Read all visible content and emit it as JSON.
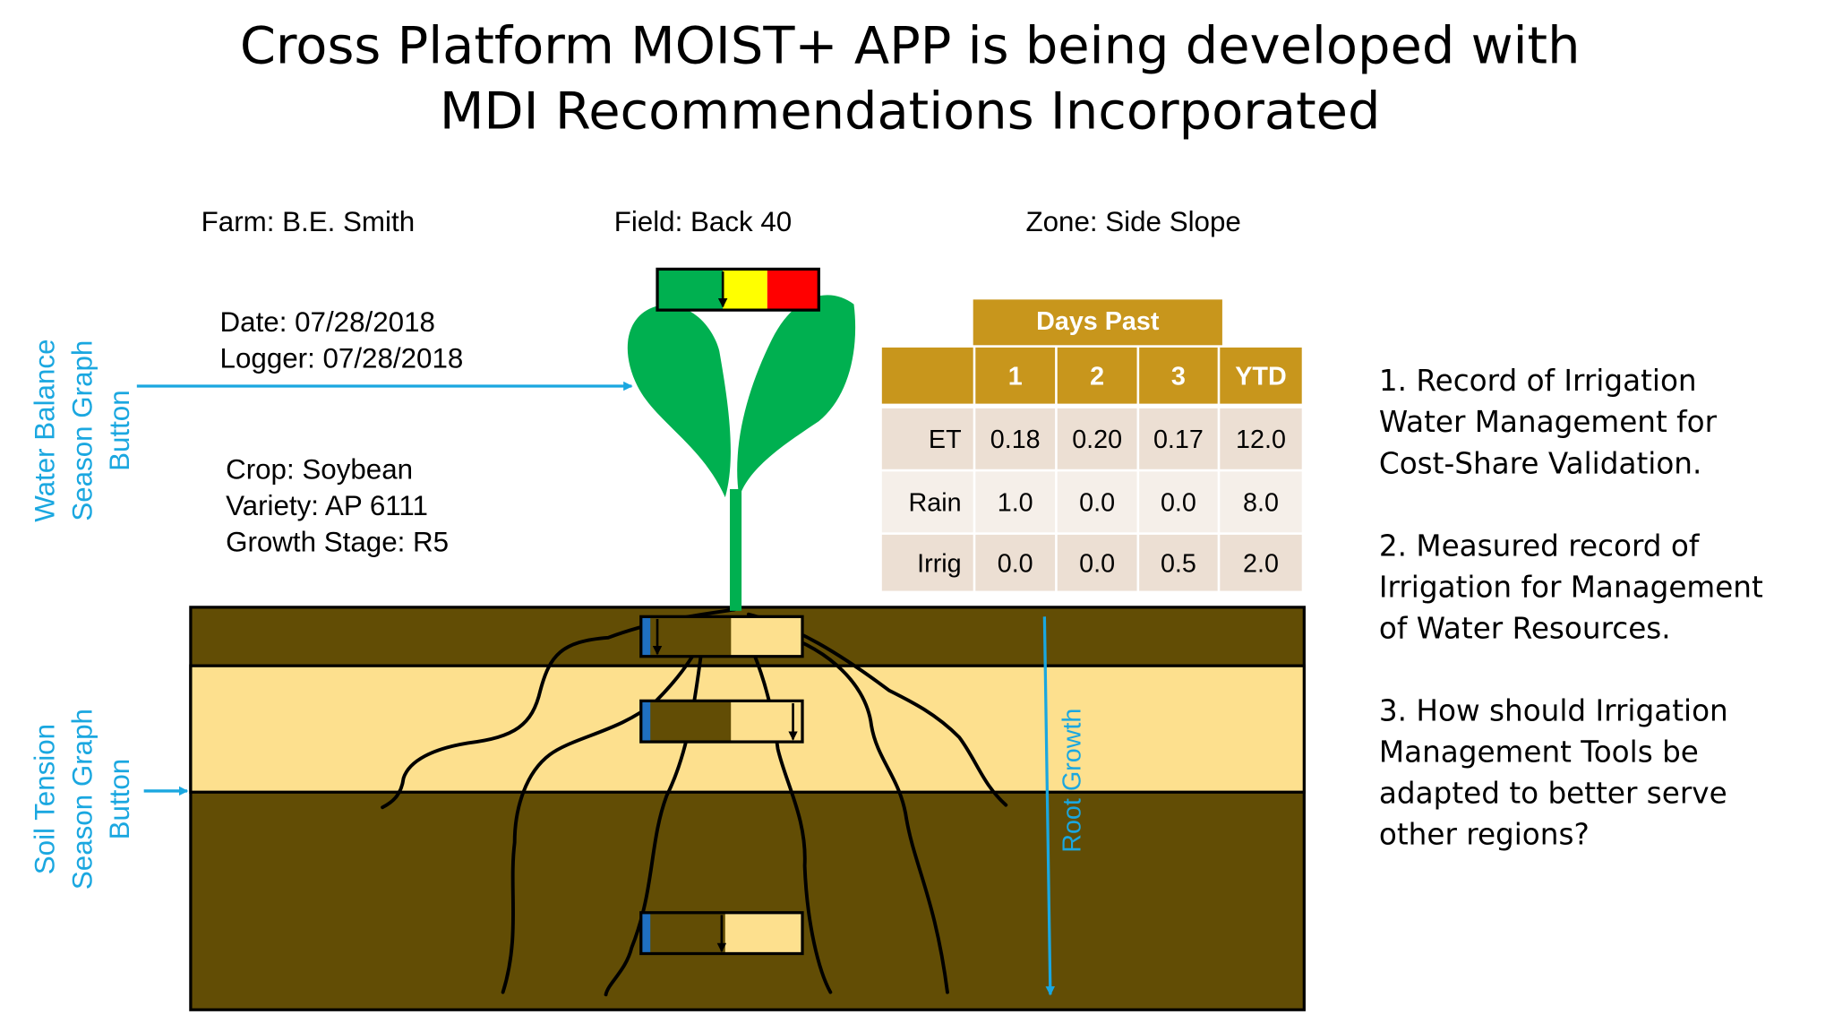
{
  "title": [
    "Cross Platform MOIST+ APP is being developed with",
    "MDI Recommendations Incorporated"
  ],
  "farm": "Farm: B.E. Smith",
  "field": "Field: Back 40",
  "zone": "Zone: Side Slope",
  "date": "Date: 07/28/2018",
  "logger": "Logger: 07/28/2018",
  "crop": "Crop: Soybean",
  "variety": "Variety: AP 6111",
  "growth_stage": "Growth Stage: R5",
  "water_balance_button": [
    "Water Balance",
    "Season Graph",
    "Button"
  ],
  "soil_tension_button": [
    "Soil Tension",
    "Season Graph",
    "Button"
  ],
  "root_growth": "Root Growth",
  "table": {
    "group_header": "Days Past",
    "columns": [
      "1",
      "2",
      "3",
      "YTD"
    ],
    "rows": [
      {
        "label": "ET",
        "cells": [
          "0.18",
          "0.20",
          "0.17",
          "12.0"
        ]
      },
      {
        "label": "Rain",
        "cells": [
          "1.0",
          "0.0",
          "0.0",
          "8.0"
        ]
      },
      {
        "label": "Irrig",
        "cells": [
          "0.0",
          "0.0",
          "0.5",
          "2.0"
        ]
      }
    ]
  },
  "notes": [
    [
      "1. Record of Irrigation",
      "Water Management for",
      "Cost-Share Validation."
    ],
    [
      "2. Measured record of",
      "Irrigation for Management",
      "of Water Resources."
    ],
    [
      "3. How should Irrigation",
      "Management Tools be",
      "adapted to better serve",
      "other regions?"
    ]
  ]
}
